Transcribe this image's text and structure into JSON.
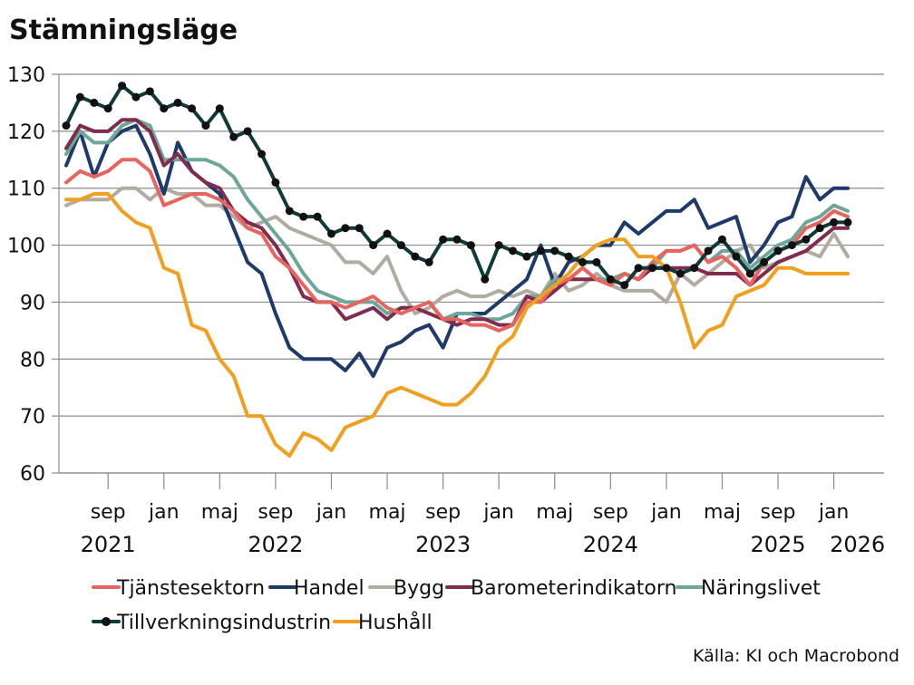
{
  "chart_data": {
    "type": "line",
    "title": "Stämningsläge",
    "source": "Källa: KI och Macrobond",
    "ylim": [
      60,
      130
    ],
    "yticks": [
      60,
      70,
      80,
      90,
      100,
      110,
      120,
      130
    ],
    "x_start": "2021-06",
    "x_end": "2026-01",
    "month_ticks": [
      {
        "label": "sep",
        "index": 3
      },
      {
        "label": "jan",
        "index": 7
      },
      {
        "label": "maj",
        "index": 11
      },
      {
        "label": "sep",
        "index": 15
      },
      {
        "label": "jan",
        "index": 19
      },
      {
        "label": "maj",
        "index": 23
      },
      {
        "label": "sep",
        "index": 27
      },
      {
        "label": "jan",
        "index": 31
      },
      {
        "label": "maj",
        "index": 35
      },
      {
        "label": "sep",
        "index": 39
      },
      {
        "label": "jan",
        "index": 43
      },
      {
        "label": "maj",
        "index": 47
      },
      {
        "label": "sep",
        "index": 51
      },
      {
        "label": "jan",
        "index": 55
      }
    ],
    "year_labels": [
      {
        "label": "2021",
        "index": 3
      },
      {
        "label": "2022",
        "index": 15
      },
      {
        "label": "2023",
        "index": 27
      },
      {
        "label": "2024",
        "index": 39
      },
      {
        "label": "2025",
        "index": 51
      },
      {
        "label": "2026",
        "index": 55
      }
    ],
    "series": [
      {
        "name": "Tjänstesektorn",
        "color": "#e8645f",
        "markers": false,
        "values": [
          111,
          113,
          112,
          113,
          115,
          115,
          113,
          107,
          108,
          109,
          109,
          108,
          106,
          103,
          102,
          98,
          96,
          93,
          90,
          90,
          89,
          90,
          91,
          89,
          88,
          89,
          90,
          87,
          87,
          86,
          86,
          85,
          86,
          90,
          90,
          93,
          94,
          96,
          94,
          93,
          95,
          94,
          97,
          99,
          99,
          100,
          97,
          98,
          96,
          93,
          97,
          99,
          100,
          103,
          104,
          106,
          105
        ]
      },
      {
        "name": "Handel",
        "color": "#1e3a6b",
        "markers": false,
        "values": [
          114,
          120,
          112,
          118,
          120,
          121,
          116,
          109,
          118,
          113,
          111,
          109,
          103,
          97,
          95,
          88,
          82,
          80,
          80,
          80,
          78,
          81,
          77,
          82,
          83,
          85,
          86,
          82,
          88,
          88,
          88,
          90,
          92,
          94,
          100,
          93,
          97,
          98,
          100,
          100,
          104,
          102,
          104,
          106,
          106,
          108,
          103,
          104,
          105,
          97,
          100,
          104,
          105,
          112,
          108,
          110,
          110
        ]
      },
      {
        "name": "Bygg",
        "color": "#b2aba2",
        "markers": false,
        "values": [
          107,
          108,
          108,
          108,
          110,
          110,
          108,
          110,
          109,
          109,
          107,
          107,
          105,
          103,
          104,
          105,
          103,
          102,
          101,
          100,
          97,
          97,
          95,
          98,
          92,
          88,
          89,
          91,
          92,
          91,
          91,
          92,
          91,
          92,
          91,
          95,
          92,
          93,
          95,
          93,
          92,
          92,
          92,
          90,
          95,
          93,
          95,
          97,
          99,
          100,
          96,
          97,
          98,
          99,
          98,
          102,
          98
        ]
      },
      {
        "name": "Barometerindikatorn",
        "color": "#7f2c4f",
        "markers": false,
        "values": [
          117,
          121,
          120,
          120,
          122,
          122,
          120,
          114,
          116,
          113,
          111,
          110,
          106,
          104,
          103,
          100,
          96,
          91,
          90,
          90,
          87,
          88,
          89,
          87,
          89,
          89,
          88,
          87,
          86,
          87,
          87,
          86,
          86,
          91,
          90,
          92,
          94,
          94,
          94,
          93,
          95,
          94,
          96,
          96,
          96,
          96,
          95,
          95,
          95,
          93,
          95,
          97,
          98,
          99,
          101,
          103,
          103
        ]
      },
      {
        "name": "Näringslivet",
        "color": "#6ea79a",
        "markers": false,
        "values": [
          116,
          120,
          118,
          118,
          121,
          122,
          121,
          115,
          115,
          115,
          115,
          114,
          112,
          108,
          105,
          102,
          99,
          95,
          92,
          91,
          90,
          90,
          90,
          88,
          89,
          89,
          90,
          87,
          88,
          88,
          87,
          87,
          88,
          91,
          91,
          94,
          94,
          96,
          94,
          94,
          95,
          94,
          96,
          99,
          99,
          100,
          97,
          99,
          99,
          96,
          98,
          100,
          101,
          104,
          105,
          107,
          106
        ]
      },
      {
        "name": "Tillverkningsindustrin",
        "color": "#0e3a3a",
        "markers": true,
        "values": [
          121,
          126,
          125,
          124,
          128,
          126,
          127,
          124,
          125,
          124,
          121,
          124,
          119,
          120,
          116,
          111,
          106,
          105,
          105,
          102,
          103,
          103,
          100,
          102,
          100,
          98,
          97,
          101,
          101,
          100,
          94,
          100,
          99,
          98,
          99,
          99,
          98,
          97,
          97,
          94,
          93,
          96,
          96,
          96,
          95,
          96,
          99,
          101,
          98,
          95,
          97,
          99,
          100,
          101,
          103,
          104,
          104
        ]
      },
      {
        "name": "Hushåll",
        "color": "#f0a01e",
        "markers": false,
        "values": [
          108,
          108,
          109,
          109,
          106,
          104,
          103,
          96,
          95,
          86,
          85,
          80,
          77,
          70,
          70,
          65,
          63,
          67,
          66,
          64,
          68,
          69,
          70,
          74,
          75,
          74,
          73,
          72,
          72,
          74,
          77,
          82,
          84,
          89,
          91,
          93,
          95,
          98,
          100,
          101,
          101,
          98,
          98,
          96,
          90,
          82,
          85,
          86,
          91,
          92,
          93,
          96,
          96,
          95,
          95,
          95,
          95
        ]
      }
    ]
  }
}
